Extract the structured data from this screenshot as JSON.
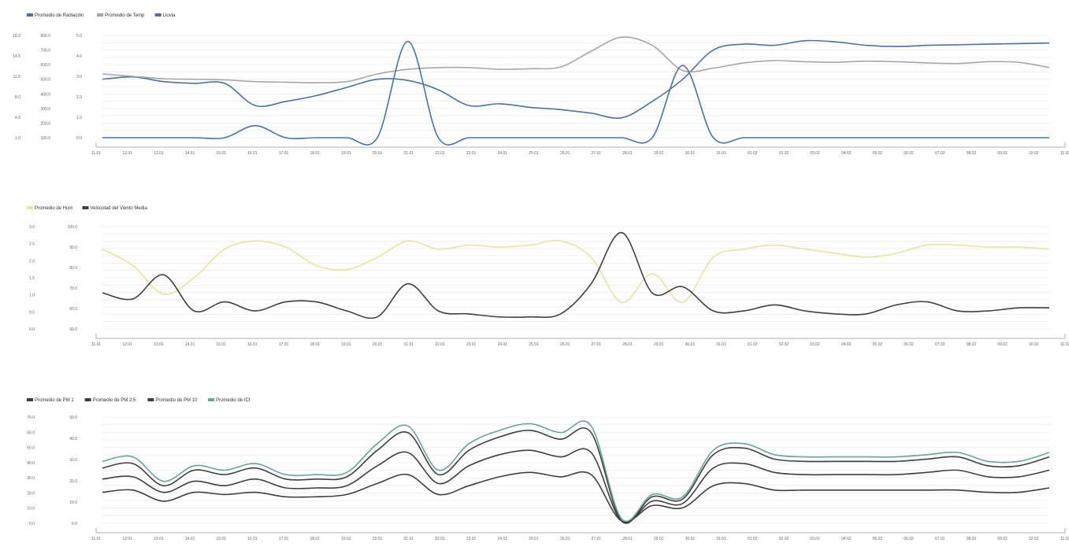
{
  "x_labels": [
    "11.01",
    "12.01",
    "13.01",
    "14.01",
    "15.01",
    "16.01",
    "17.01",
    "18.01",
    "19.01",
    "20.01",
    "21.01",
    "22.01",
    "23.01",
    "24.01",
    "25.01",
    "26.01",
    "27.01",
    "28.01",
    "29.01",
    "30.01",
    "31.01",
    "01.02",
    "02.02",
    "03.02",
    "04.02",
    "05.02",
    "06.02",
    "07.02",
    "08.02",
    "09.02",
    "10.02",
    "11.02"
  ],
  "chart_data": [
    {
      "type": "line",
      "series": [
        {
          "name": "Promedio de Radiación",
          "color": "#4a72a5",
          "values": [
            100,
            104,
            96,
            93,
            93,
            55,
            62,
            72,
            86,
            100,
            98,
            82,
            55,
            58,
            52,
            48,
            42,
            34,
            62,
            100,
            150,
            160,
            158,
            166,
            164,
            158,
            156,
            158,
            159,
            160,
            161,
            162
          ]
        },
        {
          "name": "Promedio de Temp",
          "color": "#a6a6a6",
          "values": [
            109,
            105,
            101,
            100,
            99,
            96,
            95,
            94,
            96,
            109,
            117,
            120,
            120,
            117,
            118,
            121,
            148,
            172,
            158,
            115,
            119,
            128,
            132,
            130,
            129,
            131,
            130,
            128,
            127,
            130,
            129,
            120
          ]
        },
        {
          "name": "Lluvia",
          "color": "#4a72a5",
          "values": [
            0,
            0,
            0,
            0,
            0,
            1,
            0,
            0,
            0,
            0,
            8,
            0,
            0,
            0,
            0,
            0,
            0,
            0,
            0,
            6,
            0,
            0,
            0,
            0,
            0,
            0,
            0,
            0,
            0,
            0,
            0,
            0
          ]
        }
      ],
      "y_ticks": [
        "1.0",
        "4.5",
        "8.0",
        "11.5",
        "14.5",
        "18.0"
      ],
      "y_ticks_2": [
        "100.0",
        "200.0",
        "300.0",
        "400.0",
        "500.0",
        "600.0",
        "700.0",
        "800.0"
      ],
      "y_ticks_3": [
        "0.0",
        "1.0",
        "2.0",
        "3.0",
        "4.0",
        "5.0"
      ]
    },
    {
      "type": "line",
      "series": [
        {
          "name": "Promedio de Hum",
          "color": "#e8e4a0",
          "values": [
            84,
            76,
            62,
            70,
            84,
            88,
            85,
            76,
            74,
            80,
            88,
            84,
            86,
            85,
            86,
            88,
            80,
            58,
            72,
            58,
            80,
            84,
            86,
            84,
            82,
            80,
            82,
            86,
            86,
            85,
            85,
            84
          ]
        },
        {
          "name": "Velocidad del Viento Media",
          "color": "#404040",
          "values": [
            3.2,
            3.0,
            3.8,
            2.6,
            2.9,
            2.6,
            2.9,
            2.9,
            2.6,
            2.4,
            3.5,
            2.6,
            2.5,
            2.4,
            2.4,
            2.5,
            3.5,
            5.2,
            3.2,
            3.4,
            2.6,
            2.6,
            2.8,
            2.6,
            2.5,
            2.5,
            2.8,
            2.9,
            2.6,
            2.6,
            2.7,
            2.7
          ]
        }
      ],
      "y_ticks": [
        "0.0",
        "0.5",
        "1.0",
        "1.5",
        "2.0",
        "2.5",
        "3.0"
      ],
      "y_ticks_2": [
        "50.0",
        "60.0",
        "70.0",
        "80.0",
        "90.0",
        "100.0"
      ]
    },
    {
      "type": "line",
      "series": [
        {
          "name": "Promedio de PM 1",
          "color": "#3f3f3f",
          "values": [
            14,
            15,
            10,
            14,
            13,
            14,
            12,
            12,
            13,
            18,
            22,
            13,
            17,
            21,
            23,
            21,
            22,
            1,
            8,
            7,
            17,
            18,
            15,
            15,
            15,
            15,
            15,
            15,
            15,
            14,
            14,
            16
          ]
        },
        {
          "name": "Promedio de PM 2.5",
          "color": "#3f3f3f",
          "values": [
            20,
            21,
            14,
            19,
            17,
            20,
            16,
            16,
            17,
            26,
            32,
            18,
            26,
            31,
            33,
            30,
            32,
            1,
            10,
            9,
            25,
            27,
            23,
            22,
            22,
            22,
            22,
            23,
            24,
            21,
            21,
            24
          ]
        },
        {
          "name": "Promedio de PM 10",
          "color": "#3f3f3f",
          "values": [
            25,
            27,
            17,
            24,
            22,
            25,
            20,
            20,
            21,
            33,
            41,
            22,
            33,
            39,
            42,
            38,
            41,
            1,
            12,
            11,
            31,
            34,
            29,
            28,
            28,
            28,
            28,
            29,
            30,
            26,
            26,
            30
          ]
        },
        {
          "name": "Promedio de ICI",
          "color": "#6aa39c",
          "values": [
            28,
            30,
            19,
            26,
            24,
            27,
            22,
            22,
            23,
            36,
            44,
            24,
            36,
            42,
            45,
            41,
            44,
            2,
            13,
            12,
            33,
            36,
            31,
            30,
            30,
            30,
            30,
            31,
            32,
            28,
            28,
            32
          ]
        }
      ],
      "y_ticks": [
        "0.0",
        "10.0",
        "20.0",
        "30.0",
        "40.0",
        "50.0",
        "60.0",
        "70.0"
      ],
      "y_ticks_2": [
        "0.0",
        "10.0",
        "20.0",
        "30.0",
        "40.0",
        "50.0"
      ]
    }
  ]
}
